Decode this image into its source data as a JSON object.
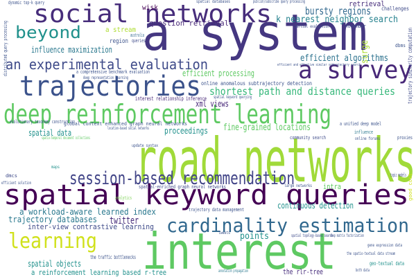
{
  "words": [
    {
      "text": "a system",
      "color": "#453781"
    },
    {
      "text": "road networks",
      "color": "#a0da39"
    },
    {
      "text": "interest",
      "color": "#5ec962"
    },
    {
      "text": "spatial keyword queries",
      "color": "#440154"
    },
    {
      "text": "social networks",
      "color": "#472d7b"
    },
    {
      "text": "deep reinforcement learning",
      "color": "#5ec962"
    },
    {
      "text": "trajectories",
      "color": "#3b528b"
    },
    {
      "text": "a survey",
      "color": "#482878"
    },
    {
      "text": "session-based recommendation",
      "color": "#414487"
    },
    {
      "text": "cardinality estimation",
      "color": "#31688e"
    },
    {
      "text": "learning",
      "color": "#d0e11c"
    },
    {
      "text": "beyond",
      "color": "#21918c"
    },
    {
      "text": "an experimental evaluation",
      "color": "#3e4a89"
    },
    {
      "text": "shortest path and distance queries",
      "color": "#35b779"
    },
    {
      "text": "bursty regions",
      "color": "#31688e"
    },
    {
      "text": "k nearest neighbor search",
      "color": "#26828e"
    },
    {
      "text": "efficient algorithms",
      "color": "#2c728e"
    },
    {
      "text": "retrieval",
      "color": "#472d7b"
    },
    {
      "text": "question retrieval",
      "color": "#482878"
    },
    {
      "text": "influence maximization",
      "color": "#2a788e"
    },
    {
      "text": "a stream",
      "color": "#addc30"
    },
    {
      "text": "region",
      "color": "#3b528b"
    },
    {
      "text": "australia",
      "color": "#31688e"
    },
    {
      "text": "queries",
      "color": "#3e4a89"
    },
    {
      "text": "wisk",
      "color": "#440154"
    },
    {
      "text": "efficient processing",
      "color": "#5ec962"
    },
    {
      "text": "online anomalous subtrajectory detection",
      "color": "#3b528b"
    },
    {
      "text": "interest relationship inference",
      "color": "#482878"
    },
    {
      "text": "xml views",
      "color": "#482878"
    },
    {
      "text": "fine-grained locations",
      "color": "#5ec962"
    },
    {
      "text": "proceedings",
      "color": "#21918c"
    },
    {
      "text": "spatial data",
      "color": "#21918c"
    },
    {
      "text": "global context enhanced graph neural networks",
      "color": "#3b528b"
    },
    {
      "text": "a unified deep model",
      "color": "#3b528b"
    },
    {
      "text": "community search",
      "color": "#3e4a89"
    },
    {
      "text": "intra",
      "color": "#5ec962"
    },
    {
      "text": "topic models",
      "color": "#3e4a89"
    },
    {
      "text": "a workload-aware learned index",
      "color": "#2a788e"
    },
    {
      "text": "trajectory databases",
      "color": "#2a788e"
    },
    {
      "text": "twitter",
      "color": "#472d7b"
    },
    {
      "text": "continuous detection",
      "color": "#21918c"
    },
    {
      "text": "trajectory data management",
      "color": "#3b528b"
    },
    {
      "text": "inter-view contrastive learning",
      "color": "#3e4a89"
    },
    {
      "text": "points",
      "color": "#21918c"
    },
    {
      "text": "spatial objects",
      "color": "#21918c"
    },
    {
      "text": "a reinforcement learning based r-tree",
      "color": "#21918c"
    },
    {
      "text": "the traffic bottlenecks",
      "color": "#3b528b"
    },
    {
      "text": "the rlr-tree",
      "color": "#472d7b"
    },
    {
      "text": "spatial-enriched graph neural networks",
      "color": "#3e4a89"
    },
    {
      "text": "geo-textual data",
      "color": "#21918c"
    },
    {
      "text": "gene expression data",
      "color": "#3b528b"
    },
    {
      "text": "the spatio-textual data stream",
      "color": "#3b528b"
    },
    {
      "text": "both data",
      "color": "#3b528b"
    },
    {
      "text": "analytics",
      "color": "#7ad151"
    },
    {
      "text": "deep matrix factorization",
      "color": "#3b528b"
    },
    {
      "text": "spatial topology-based search",
      "color": "#3e4a89"
    },
    {
      "text": "tweets",
      "color": "#3b528b"
    },
    {
      "text": "annotation propagation",
      "color": "#2a788e"
    },
    {
      "text": "large networks",
      "color": "#3b528b"
    },
    {
      "text": "update syntax",
      "color": "#3b528b"
    },
    {
      "text": "influence",
      "color": "#2a788e"
    },
    {
      "text": "online forums",
      "color": "#3b528b"
    },
    {
      "text": "proxies",
      "color": "#3b528b"
    },
    {
      "text": "dmcs",
      "color": "#3e4a89"
    },
    {
      "text": "efficient solution",
      "color": "#3b528b"
    },
    {
      "text": "maps",
      "color": "#21918c"
    },
    {
      "text": "dynamic top-k query",
      "color": "#3b528b"
    },
    {
      "text": "spatial databases",
      "color": "#3b528b"
    },
    {
      "text": "publish/subscribe query processing",
      "color": "#3b528b"
    },
    {
      "text": "challenges",
      "color": "#3e4a89"
    },
    {
      "text": "november",
      "color": "#3e4a89"
    },
    {
      "text": "dbms",
      "color": "#3b528b"
    },
    {
      "text": "partial evaluation",
      "color": "#3e4a89"
    },
    {
      "text": "a comprehensive benchmark evaluation",
      "color": "#3b528b"
    },
    {
      "text": "deep representation learning",
      "color": "#3b528b"
    },
    {
      "text": "evolutionary taxonomy construction",
      "color": "#3b528b"
    },
    {
      "text": "location-based social networks",
      "color": "#3b528b"
    },
    {
      "text": "spatio-temporal document collections",
      "color": "#5ec962"
    },
    {
      "text": "spatial keyword querying",
      "color": "#3b528b"
    },
    {
      "text": "efficient and effective similar subtrajectory search",
      "color": "#3b528b"
    },
    {
      "text": "trajectory similarity computation",
      "color": "#3e4a89"
    },
    {
      "text": "distributed query processing",
      "color": "#3b528b"
    },
    {
      "text": "surge",
      "color": "#addc30"
    },
    {
      "text": "good cost",
      "color": "#d0e11c"
    }
  ]
}
